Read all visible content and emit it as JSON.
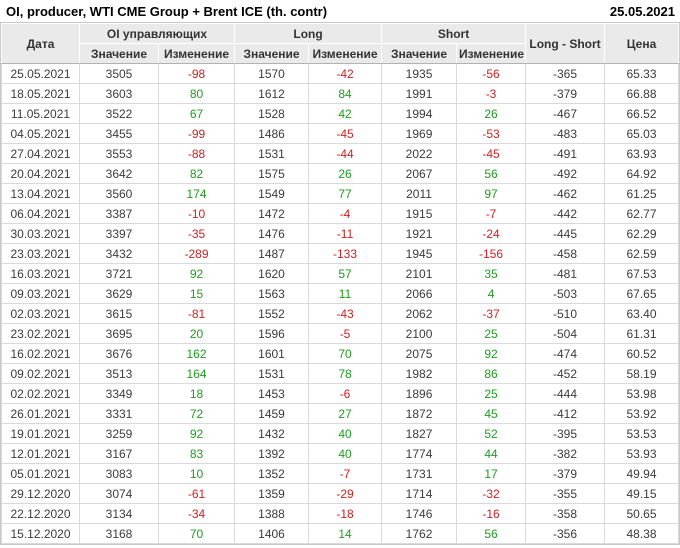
{
  "header": {
    "title": "OI, producer, WTI CME Group + Brent ICE (th. contr)",
    "report_date": "25.05.2021"
  },
  "colors": {
    "positive": "#1e9c1e",
    "negative": "#cc2222",
    "header_bg": "#eaeaea",
    "grid": "#d9d9d9"
  },
  "table": {
    "columns": {
      "date": "Дата",
      "oi_group": "OI управляющих",
      "long_group": "Long",
      "short_group": "Short",
      "value": "Значение",
      "change": "Изменение",
      "long_short": "Long - Short",
      "price": "Цена"
    },
    "rows": [
      {
        "date": "25.05.2021",
        "oi": "3505",
        "oi_chg": -98,
        "long": "1570",
        "long_chg": -42,
        "short": "1935",
        "short_chg": -56,
        "ls": "-365",
        "price": "65.33"
      },
      {
        "date": "18.05.2021",
        "oi": "3603",
        "oi_chg": 80,
        "long": "1612",
        "long_chg": 84,
        "short": "1991",
        "short_chg": -3,
        "ls": "-379",
        "price": "66.88"
      },
      {
        "date": "11.05.2021",
        "oi": "3522",
        "oi_chg": 67,
        "long": "1528",
        "long_chg": 42,
        "short": "1994",
        "short_chg": 26,
        "ls": "-467",
        "price": "66.52"
      },
      {
        "date": "04.05.2021",
        "oi": "3455",
        "oi_chg": -99,
        "long": "1486",
        "long_chg": -45,
        "short": "1969",
        "short_chg": -53,
        "ls": "-483",
        "price": "65.03"
      },
      {
        "date": "27.04.2021",
        "oi": "3553",
        "oi_chg": -88,
        "long": "1531",
        "long_chg": -44,
        "short": "2022",
        "short_chg": -45,
        "ls": "-491",
        "price": "63.93"
      },
      {
        "date": "20.04.2021",
        "oi": "3642",
        "oi_chg": 82,
        "long": "1575",
        "long_chg": 26,
        "short": "2067",
        "short_chg": 56,
        "ls": "-492",
        "price": "64.92"
      },
      {
        "date": "13.04.2021",
        "oi": "3560",
        "oi_chg": 174,
        "long": "1549",
        "long_chg": 77,
        "short": "2011",
        "short_chg": 97,
        "ls": "-462",
        "price": "61.25"
      },
      {
        "date": "06.04.2021",
        "oi": "3387",
        "oi_chg": -10,
        "long": "1472",
        "long_chg": -4,
        "short": "1915",
        "short_chg": -7,
        "ls": "-442",
        "price": "62.77"
      },
      {
        "date": "30.03.2021",
        "oi": "3397",
        "oi_chg": -35,
        "long": "1476",
        "long_chg": -11,
        "short": "1921",
        "short_chg": -24,
        "ls": "-445",
        "price": "62.29"
      },
      {
        "date": "23.03.2021",
        "oi": "3432",
        "oi_chg": -289,
        "long": "1487",
        "long_chg": -133,
        "short": "1945",
        "short_chg": -156,
        "ls": "-458",
        "price": "62.59"
      },
      {
        "date": "16.03.2021",
        "oi": "3721",
        "oi_chg": 92,
        "long": "1620",
        "long_chg": 57,
        "short": "2101",
        "short_chg": 35,
        "ls": "-481",
        "price": "67.53"
      },
      {
        "date": "09.03.2021",
        "oi": "3629",
        "oi_chg": 15,
        "long": "1563",
        "long_chg": 11,
        "short": "2066",
        "short_chg": 4,
        "ls": "-503",
        "price": "67.65"
      },
      {
        "date": "02.03.2021",
        "oi": "3615",
        "oi_chg": -81,
        "long": "1552",
        "long_chg": -43,
        "short": "2062",
        "short_chg": -37,
        "ls": "-510",
        "price": "63.40"
      },
      {
        "date": "23.02.2021",
        "oi": "3695",
        "oi_chg": 20,
        "long": "1596",
        "long_chg": -5,
        "short": "2100",
        "short_chg": 25,
        "ls": "-504",
        "price": "61.31"
      },
      {
        "date": "16.02.2021",
        "oi": "3676",
        "oi_chg": 162,
        "long": "1601",
        "long_chg": 70,
        "short": "2075",
        "short_chg": 92,
        "ls": "-474",
        "price": "60.52"
      },
      {
        "date": "09.02.2021",
        "oi": "3513",
        "oi_chg": 164,
        "long": "1531",
        "long_chg": 78,
        "short": "1982",
        "short_chg": 86,
        "ls": "-452",
        "price": "58.19"
      },
      {
        "date": "02.02.2021",
        "oi": "3349",
        "oi_chg": 18,
        "long": "1453",
        "long_chg": -6,
        "short": "1896",
        "short_chg": 25,
        "ls": "-444",
        "price": "53.98"
      },
      {
        "date": "26.01.2021",
        "oi": "3331",
        "oi_chg": 72,
        "long": "1459",
        "long_chg": 27,
        "short": "1872",
        "short_chg": 45,
        "ls": "-412",
        "price": "53.92"
      },
      {
        "date": "19.01.2021",
        "oi": "3259",
        "oi_chg": 92,
        "long": "1432",
        "long_chg": 40,
        "short": "1827",
        "short_chg": 52,
        "ls": "-395",
        "price": "53.53"
      },
      {
        "date": "12.01.2021",
        "oi": "3167",
        "oi_chg": 83,
        "long": "1392",
        "long_chg": 40,
        "short": "1774",
        "short_chg": 44,
        "ls": "-382",
        "price": "53.93"
      },
      {
        "date": "05.01.2021",
        "oi": "3083",
        "oi_chg": 10,
        "long": "1352",
        "long_chg": -7,
        "short": "1731",
        "short_chg": 17,
        "ls": "-379",
        "price": "49.94"
      },
      {
        "date": "29.12.2020",
        "oi": "3074",
        "oi_chg": -61,
        "long": "1359",
        "long_chg": -29,
        "short": "1714",
        "short_chg": -32,
        "ls": "-355",
        "price": "49.15"
      },
      {
        "date": "22.12.2020",
        "oi": "3134",
        "oi_chg": -34,
        "long": "1388",
        "long_chg": -18,
        "short": "1746",
        "short_chg": -16,
        "ls": "-358",
        "price": "50.65"
      },
      {
        "date": "15.12.2020",
        "oi": "3168",
        "oi_chg": 70,
        "long": "1406",
        "long_chg": 14,
        "short": "1762",
        "short_chg": 56,
        "ls": "-356",
        "price": "48.38"
      }
    ]
  }
}
